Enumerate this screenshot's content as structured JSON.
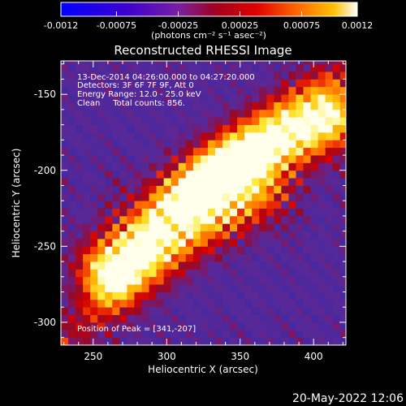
{
  "window": {
    "timestamp": "20-May-2022 12:06"
  },
  "colorbar": {
    "tick_labels": [
      "-0.0012",
      "-0.00075",
      "-0.00025",
      "0.00025",
      "0.00075",
      "0.0012"
    ],
    "tick_values": [
      -0.0012,
      -0.00075,
      -0.00025,
      0.00025,
      0.00075,
      0.0012
    ],
    "range": [
      -0.0012,
      0.0012
    ],
    "unit_label": "(photons cm⁻² s⁻¹ asec⁻²)",
    "colors": [
      "#0000ff",
      "#4b00c8",
      "#7a1fa0",
      "#a00020",
      "#e00000",
      "#ff6a00",
      "#ffc000",
      "#ffffff"
    ]
  },
  "chart_data": {
    "type": "heatmap",
    "title": "Reconstructed RHESSI Image",
    "xlabel": "Heliocentric X (arcsec)",
    "ylabel": "Heliocentric Y (arcsec)",
    "xlim": [
      228,
      422
    ],
    "ylim": [
      -315,
      -128
    ],
    "x_ticks": [
      250,
      300,
      350,
      400
    ],
    "y_ticks": [
      -150,
      -200,
      -250,
      -300
    ],
    "x_tick_labels": [
      "250",
      "300",
      "350",
      "400"
    ],
    "y_tick_labels": [
      "-150",
      "-200",
      "-250",
      "-300"
    ],
    "annotations": [
      "13-Dec-2014 04:26:00.000 to 04:27:20.000",
      "Detectors: 3F 6F 7F 9F, Att 0",
      "Energy Range: 12.0 - 25.0 keV",
      "Clean     Total counts: 856.",
      "Position of Peak = [341,-207]"
    ],
    "peak": {
      "x": 341,
      "y": -207
    },
    "source_ridge": [
      {
        "x": 262,
        "y": -265
      },
      {
        "x": 300,
        "y": -232
      },
      {
        "x": 328,
        "y": -212
      },
      {
        "x": 352,
        "y": -196
      },
      {
        "x": 380,
        "y": -180
      },
      {
        "x": 410,
        "y": -165
      }
    ]
  }
}
